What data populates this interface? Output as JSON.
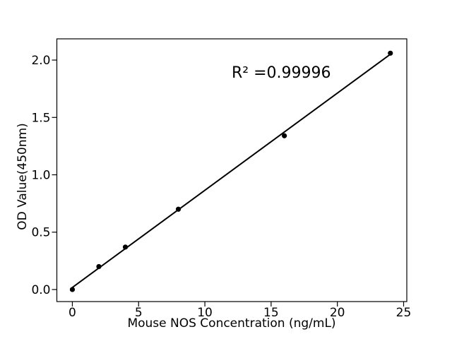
{
  "chart_data": {
    "type": "scatter",
    "title": "",
    "xlabel": "Mouse NOS Concentration (ng/mL)",
    "ylabel": "OD Value(450nm)",
    "annotation": "R² =0.99996",
    "annotation_pos": {
      "x": 12.0,
      "y": 1.85
    },
    "xlim": [
      -1.17,
      25.24
    ],
    "ylim": [
      -0.105,
      2.185
    ],
    "x_ticks": [
      {
        "value": 0,
        "label": "0"
      },
      {
        "value": 5,
        "label": "5"
      },
      {
        "value": 10,
        "label": "10"
      },
      {
        "value": 15,
        "label": "15"
      },
      {
        "value": 20,
        "label": "20"
      },
      {
        "value": 25,
        "label": "25"
      }
    ],
    "y_ticks": [
      {
        "value": 0.0,
        "label": "0.0"
      },
      {
        "value": 0.5,
        "label": "0.5"
      },
      {
        "value": 1.0,
        "label": "1.0"
      },
      {
        "value": 1.5,
        "label": "1.5"
      },
      {
        "value": 2.0,
        "label": "2.0"
      }
    ],
    "points": [
      {
        "x": 0,
        "y": 0.0
      },
      {
        "x": 2,
        "y": 0.2
      },
      {
        "x": 4,
        "y": 0.37
      },
      {
        "x": 8,
        "y": 0.7
      },
      {
        "x": 16,
        "y": 1.34
      },
      {
        "x": 24,
        "y": 2.06
      }
    ],
    "fit_line": {
      "slope": 0.0847,
      "intercept": 0.018,
      "x_start": 0,
      "x_end": 24
    },
    "legend": null,
    "grid": false,
    "colors": {
      "marker": "#000000",
      "line": "#000000",
      "spine": "#000000",
      "text": "#000000",
      "background": "#ffffff"
    }
  }
}
